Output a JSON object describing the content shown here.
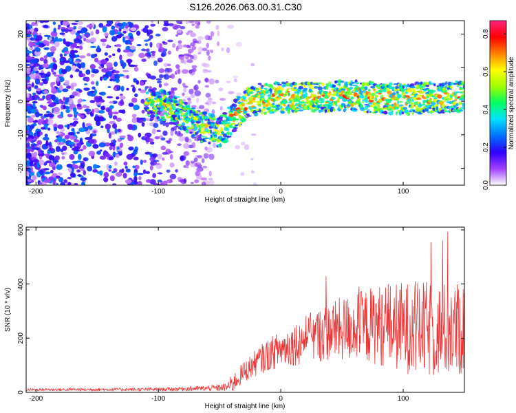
{
  "title": "S126.2026.063.00.31.C30",
  "chart_data": [
    {
      "type": "heatmap",
      "title": "S126.2026.063.00.31.C30",
      "xlabel": "Height of straight line (km)",
      "ylabel": "Frequency (Hz)",
      "xlim": [
        -208,
        150
      ],
      "ylim": [
        -25,
        24
      ],
      "xticks": [
        -200,
        -100,
        0,
        100
      ],
      "xtick_labels": [
        "-200",
        "-100",
        "0",
        "100"
      ],
      "yticks": [
        -20,
        -10,
        0,
        10,
        20
      ],
      "ytick_labels": [
        "-20",
        "-10",
        "0",
        "10",
        "20"
      ],
      "colorbar": {
        "label": "Normalized spectral amplitude",
        "range": [
          0.0,
          0.87
        ],
        "ticks": [
          0.0,
          0.2,
          0.4,
          0.6,
          0.8
        ],
        "tick_labels": [
          "0.0",
          "0.2",
          "0.4",
          "0.6",
          "0.8"
        ],
        "colors": [
          "#ffffff",
          "#a040ff",
          "#3000ff",
          "#0070ff",
          "#00e0ff",
          "#00ff60",
          "#a0ff00",
          "#ffff00",
          "#ff8000",
          "#ff0000",
          "#ff2080"
        ]
      },
      "ridge": {
        "x": [
          -110,
          -100,
          -90,
          -80,
          -70,
          -60,
          -55,
          -50,
          -45,
          -40,
          -35,
          -30,
          -25,
          -20,
          -10,
          0,
          20,
          40,
          60,
          80,
          100,
          120,
          150
        ],
        "freq": [
          0,
          -1,
          -2,
          -4,
          -7,
          -8,
          -9,
          -9,
          -8,
          -5,
          -3,
          -2,
          0,
          0.5,
          1,
          1.2,
          1,
          1.5,
          1.5,
          1,
          0.5,
          1,
          1.5
        ]
      },
      "noise_region_x": [
        -208,
        -60
      ]
    },
    {
      "type": "line",
      "xlabel": "Height of straight line (km)",
      "ylabel": "SNR (10 * v/v)",
      "xlim": [
        -208,
        150
      ],
      "ylim": [
        0,
        610
      ],
      "xticks": [
        -200,
        -100,
        0,
        100
      ],
      "xtick_labels": [
        "-200",
        "-100",
        "0",
        "100"
      ],
      "yticks": [
        0,
        200,
        400,
        600
      ],
      "ytick_labels": [
        "0",
        "200",
        "400",
        "600"
      ],
      "color": "#ee3333",
      "envelope": {
        "x": [
          -208,
          -100,
          -60,
          -45,
          -40,
          -30,
          -20,
          -10,
          0,
          20,
          40,
          60,
          80,
          100,
          120,
          150
        ],
        "median": [
          10,
          11,
          15,
          18,
          30,
          75,
          110,
          140,
          160,
          195,
          225,
          240,
          250,
          240,
          230,
          230
        ],
        "spread": [
          5,
          6,
          10,
          15,
          35,
          40,
          50,
          60,
          70,
          90,
          110,
          130,
          150,
          170,
          180,
          180
        ]
      }
    }
  ]
}
